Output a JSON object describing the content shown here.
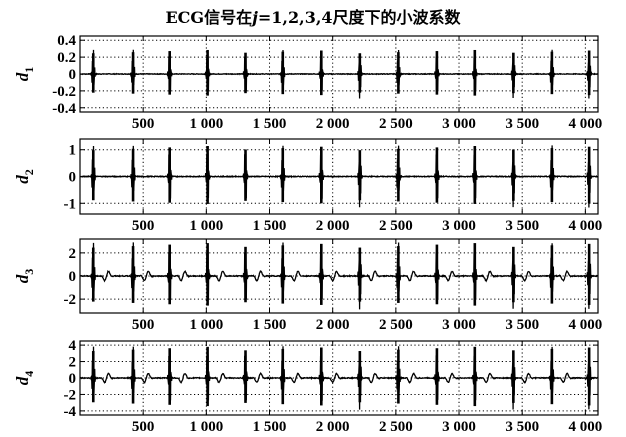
{
  "title": {
    "prefix": "ECG信号在",
    "var": "j",
    "suffix": "=1,2,3,4尺度下的小波系数"
  },
  "colors": {
    "line": "#000000",
    "grid": "#000000",
    "background": "#ffffff"
  },
  "chart_data": [
    {
      "type": "line",
      "ylabel_base": "d",
      "ylabel_sub": "1",
      "xlim": [
        0,
        4100
      ],
      "ylim": [
        -0.45,
        0.45
      ],
      "yticks": [
        -0.4,
        -0.2,
        0,
        0.2,
        0.4
      ],
      "ytick_labels": [
        "-0.4",
        "-0.2",
        "0",
        "0.2",
        "0.4"
      ],
      "xticks": [
        500,
        1000,
        1500,
        2000,
        2500,
        3000,
        3500,
        4000
      ],
      "xtick_labels": [
        "500",
        "1 000",
        "1 500",
        "2 000",
        "2 500",
        "3 000",
        "3 500",
        "4 000"
      ],
      "grid": true,
      "beats": [
        105,
        420,
        710,
        1010,
        1310,
        1605,
        1910,
        2215,
        2520,
        2825,
        3125,
        3430,
        3735,
        4030
      ],
      "peak": 0.3
    },
    {
      "type": "line",
      "ylabel_base": "d",
      "ylabel_sub": "2",
      "xlim": [
        0,
        4100
      ],
      "ylim": [
        -1.4,
        1.4
      ],
      "yticks": [
        -1,
        0,
        1
      ],
      "ytick_labels": [
        "-1",
        "0",
        "1"
      ],
      "xticks": [
        500,
        1000,
        1500,
        2000,
        2500,
        3000,
        3500,
        4000
      ],
      "xtick_labels": [
        "500",
        "1 000",
        "1 500",
        "2 000",
        "2 500",
        "3 000",
        "3 500",
        "4 000"
      ],
      "grid": true,
      "beats": [
        105,
        420,
        710,
        1010,
        1310,
        1605,
        1910,
        2215,
        2520,
        2825,
        3125,
        3430,
        3735,
        4030
      ],
      "peak": 1.2
    },
    {
      "type": "line",
      "ylabel_base": "d",
      "ylabel_sub": "3",
      "xlim": [
        0,
        4100
      ],
      "ylim": [
        -3.2,
        3.2
      ],
      "yticks": [
        -2,
        0,
        2
      ],
      "ytick_labels": [
        "-2",
        "0",
        "2"
      ],
      "xticks": [
        500,
        1000,
        1500,
        2000,
        2500,
        3000,
        3500,
        4000
      ],
      "xtick_labels": [
        "500",
        "1 000",
        "1 500",
        "2 000",
        "2 500",
        "3 000",
        "3 500",
        "4 000"
      ],
      "grid": true,
      "beats": [
        105,
        420,
        710,
        1010,
        1310,
        1605,
        1910,
        2215,
        2520,
        2825,
        3125,
        3430,
        3735,
        4030
      ],
      "peak": 3.0
    },
    {
      "type": "line",
      "ylabel_base": "d",
      "ylabel_sub": "4",
      "xlim": [
        0,
        4100
      ],
      "ylim": [
        -4.5,
        4.5
      ],
      "yticks": [
        -4,
        -2,
        0,
        2,
        4
      ],
      "ytick_labels": [
        "-4",
        "-2",
        "0",
        "2",
        "4"
      ],
      "xticks": [
        500,
        1000,
        1500,
        2000,
        2500,
        3000,
        3500,
        4000
      ],
      "xtick_labels": [
        "500",
        "1 000",
        "1 500",
        "2 000",
        "2 500",
        "3 000",
        "3 500",
        "4 000"
      ],
      "grid": true,
      "beats": [
        105,
        420,
        710,
        1010,
        1310,
        1605,
        1910,
        2215,
        2520,
        2825,
        3125,
        3430,
        3735,
        4030
      ],
      "peak": 4.0
    }
  ]
}
